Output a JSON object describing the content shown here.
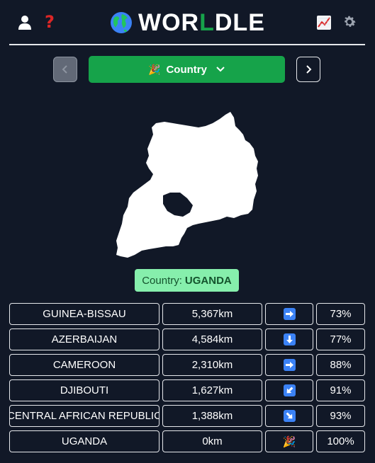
{
  "header": {
    "title_pre": "WOR",
    "title_mid": "L",
    "title_post": "DLE",
    "help_glyph": "?",
    "icons": [
      "user-icon",
      "help-icon",
      "globe-icon",
      "stats-icon",
      "gear-icon"
    ]
  },
  "mode": {
    "emoji": "🎉",
    "label": "Country"
  },
  "answer": {
    "prefix": "Country:",
    "value": "UGANDA"
  },
  "guesses": [
    {
      "country": "GUINEA-BISSAU",
      "distance": "5,367km",
      "direction": "east",
      "proximity": "73%"
    },
    {
      "country": "AZERBAIJAN",
      "distance": "4,584km",
      "direction": "south",
      "proximity": "77%"
    },
    {
      "country": "CAMEROON",
      "distance": "2,310km",
      "direction": "east",
      "proximity": "88%"
    },
    {
      "country": "DJIBOUTI",
      "distance": "1,627km",
      "direction": "south-west",
      "proximity": "91%"
    },
    {
      "country": "CENTRAL AFRICAN REPUBLIC",
      "distance": "1,388km",
      "direction": "south-east",
      "proximity": "93%"
    },
    {
      "country": "UGANDA",
      "distance": "0km",
      "direction": "correct",
      "correct_emoji": "🎉",
      "proximity": "100%"
    }
  ],
  "colors": {
    "background": "#111827",
    "accent": "#16a34a",
    "answer_bg": "#86efac",
    "arrow": "#3b82f6",
    "help": "#dc2626"
  }
}
